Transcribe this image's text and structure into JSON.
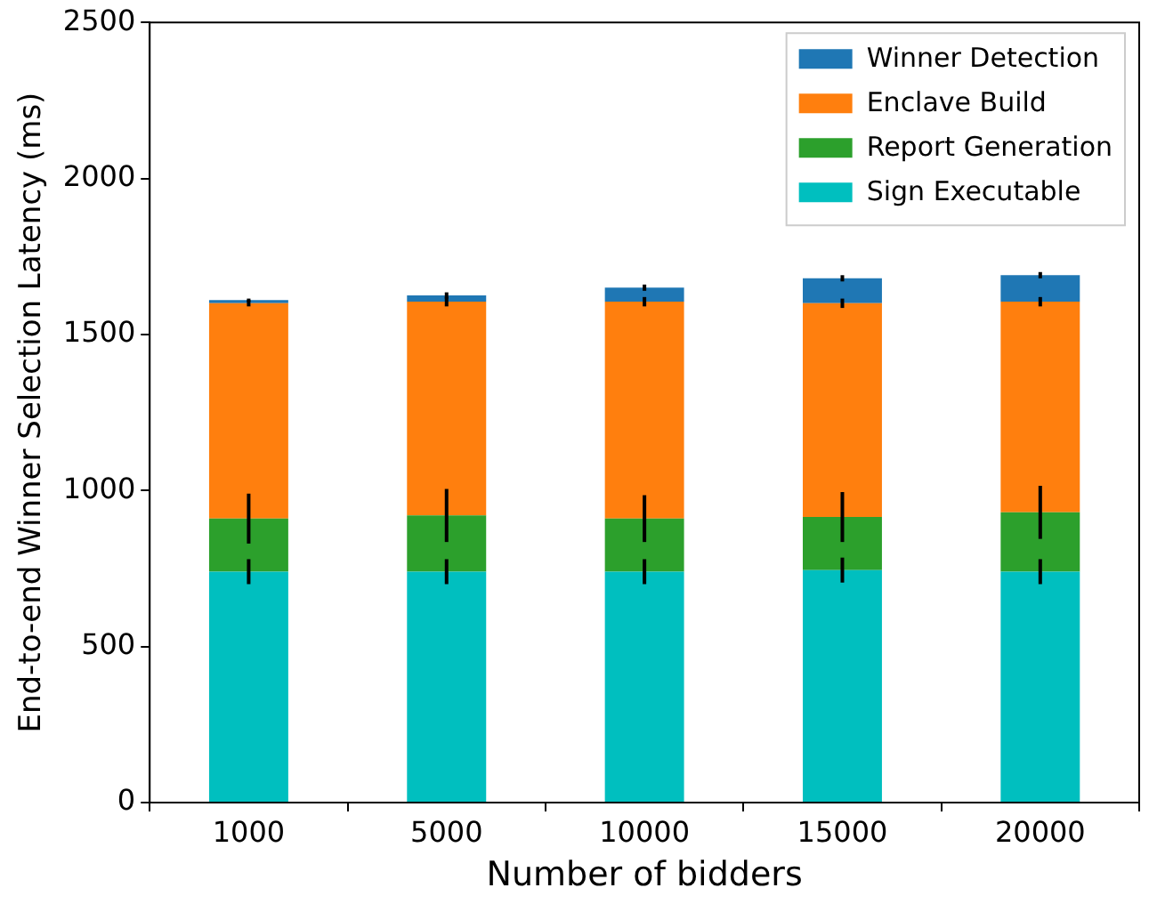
{
  "chart_data": {
    "type": "bar",
    "stacked": true,
    "xlabel": "Number of bidders",
    "ylabel": "End-to-end Winner Selection Latency (ms)",
    "categories": [
      "1000",
      "5000",
      "10000",
      "15000",
      "20000"
    ],
    "series": [
      {
        "name": "Sign Executable",
        "color": "#00bfbf",
        "values": [
          740,
          740,
          740,
          745,
          740
        ],
        "errors": [
          40,
          40,
          40,
          40,
          40
        ]
      },
      {
        "name": "Report Generation",
        "color": "#2ca02c",
        "values": [
          170,
          180,
          170,
          170,
          190
        ],
        "errors": [
          80,
          85,
          75,
          80,
          85
        ]
      },
      {
        "name": "Enclave Build",
        "color": "#ff7f0e",
        "values": [
          690,
          685,
          695,
          685,
          675
        ],
        "errors": [
          10,
          15,
          15,
          15,
          15
        ]
      },
      {
        "name": "Winner Detection",
        "color": "#1f77b4",
        "values": [
          10,
          20,
          45,
          80,
          85
        ],
        "errors": [
          5,
          10,
          10,
          10,
          10
        ]
      }
    ],
    "ylim": [
      0,
      2500
    ],
    "yticks": [
      0,
      500,
      1000,
      1500,
      2000,
      2500
    ],
    "grid": false,
    "legend": "top right"
  }
}
